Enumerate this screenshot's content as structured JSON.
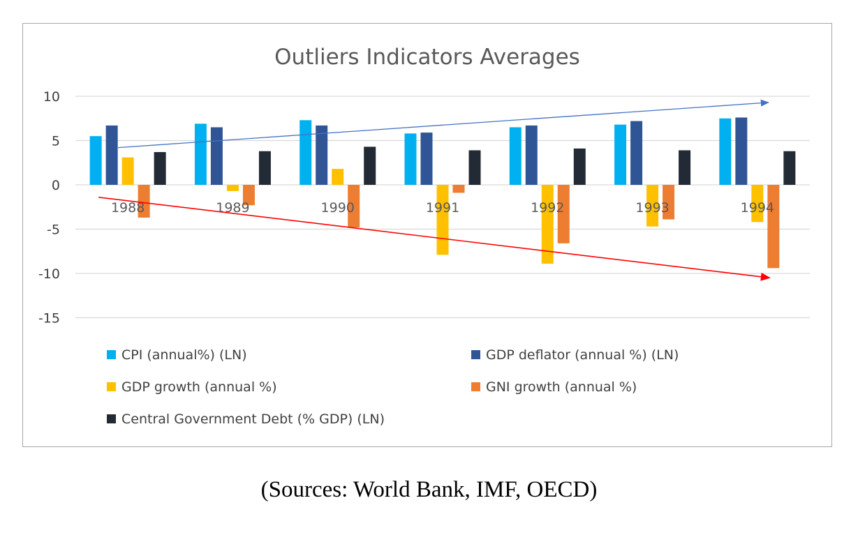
{
  "chart_data": {
    "type": "bar",
    "title": "Outliers Indicators Averages",
    "categories": [
      "1988",
      "1989",
      "1990",
      "1991",
      "1992",
      "1993",
      "1994"
    ],
    "ylim": [
      -15,
      10
    ],
    "yticks": [
      10,
      5,
      0,
      -5,
      -10,
      -15
    ],
    "grid": true,
    "legend_position": "bottom",
    "series": [
      {
        "name": "CPI (annual%) (LN)",
        "color": "#00b0f0",
        "values": [
          5.5,
          6.9,
          7.3,
          5.8,
          6.5,
          6.8,
          7.5
        ]
      },
      {
        "name": "GDP deflator (annual %) (LN)",
        "color": "#2f5597",
        "values": [
          6.7,
          6.5,
          6.7,
          5.9,
          6.7,
          7.2,
          7.6
        ]
      },
      {
        "name": "GDP growth (annual %)",
        "color": "#ffc000",
        "values": [
          3.1,
          -0.7,
          1.8,
          -7.9,
          -8.9,
          -4.7,
          -4.2
        ]
      },
      {
        "name": "GNI growth (annual %)",
        "color": "#ed7d31",
        "values": [
          -3.7,
          -2.3,
          -4.8,
          -0.9,
          -6.6,
          -3.9,
          -9.4
        ]
      },
      {
        "name": "Central Government Debt (% GDP) (LN)",
        "color": "#222a35",
        "values": [
          3.7,
          3.8,
          4.3,
          3.9,
          4.1,
          3.9,
          3.8
        ]
      }
    ],
    "annotations": [
      {
        "type": "arrow",
        "color": "#4472c4",
        "from": {
          "x": "1988",
          "y": 4.2
        },
        "to": {
          "x": "1994",
          "y": 9.3
        }
      },
      {
        "type": "arrow",
        "color": "#ff0000",
        "from": {
          "x": "1988",
          "y": -1.4
        },
        "to": {
          "x": "1994",
          "y": -10.5
        }
      }
    ]
  },
  "source_note": "(Sources: World Bank, IMF, OECD)"
}
